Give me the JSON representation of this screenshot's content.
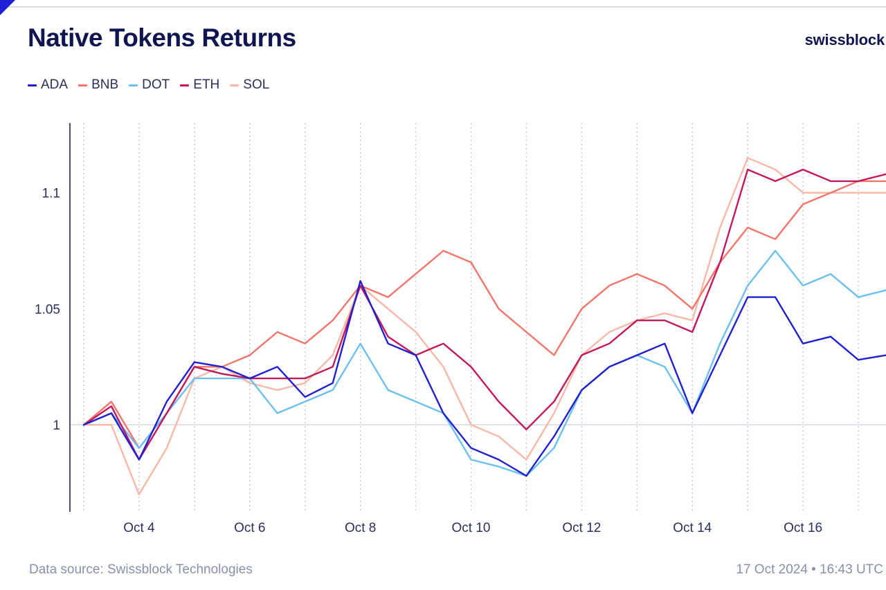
{
  "title": "Native Tokens Returns",
  "brand": "swissblock",
  "footer": {
    "source": "Data source: Swissblock Technologies",
    "timestamp": "17 Oct 2024 • 16:43 UTC"
  },
  "colors": {
    "accent": "#1f1fd6",
    "title": "#0f1550",
    "ADA": "#1f1fd0",
    "BNB": "#f2746a",
    "DOT": "#6cc0ef",
    "ETH": "#c2185b",
    "SOL": "#f7b8a8"
  },
  "chart_data": {
    "type": "line",
    "title": "Native Tokens Returns",
    "xlabel": "",
    "ylabel": "",
    "x_range": [
      2.75,
      17.5
    ],
    "ylim": [
      0.9625,
      1.13
    ],
    "y_ticks": [
      1,
      1.05,
      1.1
    ],
    "y_tick_labels": [
      "1",
      "1.05",
      "1.1"
    ],
    "x_ticks": [
      4,
      6,
      8,
      10,
      12,
      14,
      16
    ],
    "x_tick_labels": [
      "Oct 4",
      "Oct 6",
      "Oct 8",
      "Oct 10",
      "Oct 12",
      "Oct 14",
      "Oct 16"
    ],
    "grid": "vertical dotted at day boundaries, solid baseline at 1",
    "legend": "top-left",
    "x": [
      3.0,
      3.5,
      4.0,
      4.5,
      5.0,
      5.5,
      6.0,
      6.5,
      7.0,
      7.5,
      8.0,
      8.5,
      9.0,
      9.5,
      10.0,
      10.5,
      11.0,
      11.5,
      12.0,
      12.5,
      13.0,
      13.5,
      14.0,
      14.5,
      15.0,
      15.5,
      16.0,
      16.5,
      17.0,
      17.5
    ],
    "series": [
      {
        "name": "ADA",
        "values": [
          1.0,
          1.005,
          0.985,
          1.01,
          1.027,
          1.025,
          1.02,
          1.025,
          1.012,
          1.018,
          1.062,
          1.035,
          1.03,
          1.005,
          0.99,
          0.985,
          0.978,
          0.995,
          1.015,
          1.025,
          1.03,
          1.035,
          1.005,
          1.03,
          1.055,
          1.055,
          1.035,
          1.038,
          1.028,
          1.03
        ]
      },
      {
        "name": "BNB",
        "values": [
          1.0,
          1.01,
          0.99,
          1.005,
          1.025,
          1.025,
          1.03,
          1.04,
          1.035,
          1.045,
          1.06,
          1.055,
          1.065,
          1.075,
          1.07,
          1.05,
          1.04,
          1.03,
          1.05,
          1.06,
          1.065,
          1.06,
          1.05,
          1.07,
          1.085,
          1.08,
          1.095,
          1.1,
          1.105,
          1.105
        ]
      },
      {
        "name": "DOT",
        "values": [
          1.0,
          1.005,
          0.99,
          1.005,
          1.02,
          1.02,
          1.02,
          1.005,
          1.01,
          1.015,
          1.035,
          1.015,
          1.01,
          1.005,
          0.985,
          0.982,
          0.978,
          0.99,
          1.015,
          1.025,
          1.03,
          1.025,
          1.005,
          1.035,
          1.06,
          1.075,
          1.06,
          1.065,
          1.055,
          1.058
        ]
      },
      {
        "name": "ETH",
        "values": [
          1.0,
          1.008,
          0.985,
          1.005,
          1.025,
          1.022,
          1.02,
          1.02,
          1.02,
          1.025,
          1.06,
          1.038,
          1.03,
          1.035,
          1.025,
          1.01,
          0.998,
          1.01,
          1.03,
          1.035,
          1.045,
          1.045,
          1.04,
          1.07,
          1.11,
          1.105,
          1.11,
          1.105,
          1.105,
          1.108
        ]
      },
      {
        "name": "SOL",
        "values": [
          1.0,
          1.0,
          0.97,
          0.99,
          1.02,
          1.025,
          1.018,
          1.015,
          1.018,
          1.03,
          1.06,
          1.05,
          1.04,
          1.025,
          1.0,
          0.995,
          0.985,
          1.005,
          1.03,
          1.04,
          1.045,
          1.048,
          1.045,
          1.085,
          1.115,
          1.11,
          1.1,
          1.1,
          1.1,
          1.1
        ]
      }
    ]
  }
}
